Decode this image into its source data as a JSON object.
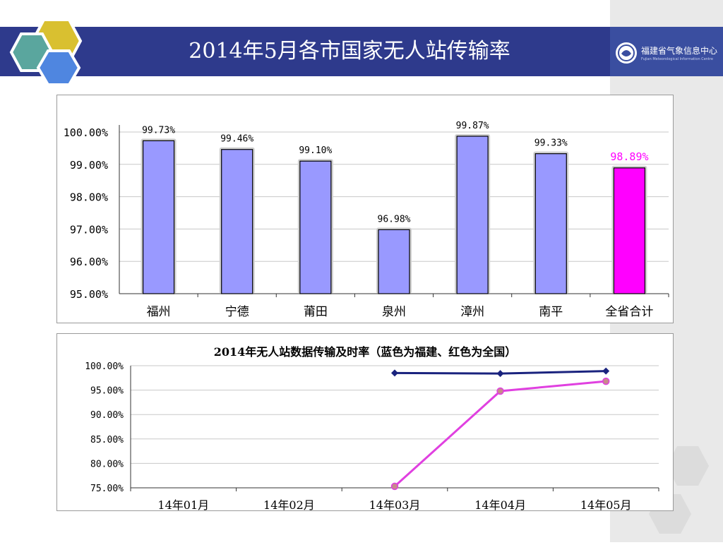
{
  "header": {
    "title": "2014年5月各市国家无人站传输率",
    "logo_text": "福建省气象信息中心",
    "logo_sub": "Fujian Meteorological Information Centre"
  },
  "chart_data": [
    {
      "type": "bar",
      "title": "",
      "categories": [
        "福州",
        "宁德",
        "莆田",
        "泉州",
        "漳州",
        "南平",
        "全省合计"
      ],
      "values": [
        99.73,
        99.46,
        99.1,
        96.98,
        99.87,
        99.33,
        98.89
      ],
      "value_labels": [
        "99.73%",
        "99.46%",
        "99.10%",
        "96.98%",
        "99.87%",
        "99.33%",
        "98.89%"
      ],
      "ylim": [
        95,
        100
      ],
      "y_ticks": [
        95,
        96,
        97,
        98,
        99,
        100
      ],
      "y_tick_labels": [
        "95.00%",
        "96.00%",
        "97.00%",
        "98.00%",
        "99.00%",
        "100.00%"
      ],
      "bar_color": "#9999ff",
      "highlight_color": "#ff00ff",
      "highlight_index": 6,
      "grid": true
    },
    {
      "type": "line",
      "title": "2014年无人站数据传输及时率（蓝色为福建、红色为全国）",
      "categories": [
        "14年01月",
        "14年02月",
        "14年03月",
        "14年04月",
        "14年05月"
      ],
      "series": [
        {
          "color": "#1a237e",
          "values": [
            null,
            null,
            98.5,
            98.4,
            98.9
          ]
        },
        {
          "color": "#e040e0",
          "values": [
            null,
            null,
            75.3,
            94.8,
            96.8
          ]
        }
      ],
      "ylim": [
        75,
        100
      ],
      "y_ticks": [
        75,
        80,
        85,
        90,
        95,
        100
      ],
      "y_tick_labels": [
        "75.00%",
        "80.00%",
        "85.00%",
        "90.00%",
        "95.00%",
        "100.00%"
      ],
      "grid": true
    }
  ]
}
